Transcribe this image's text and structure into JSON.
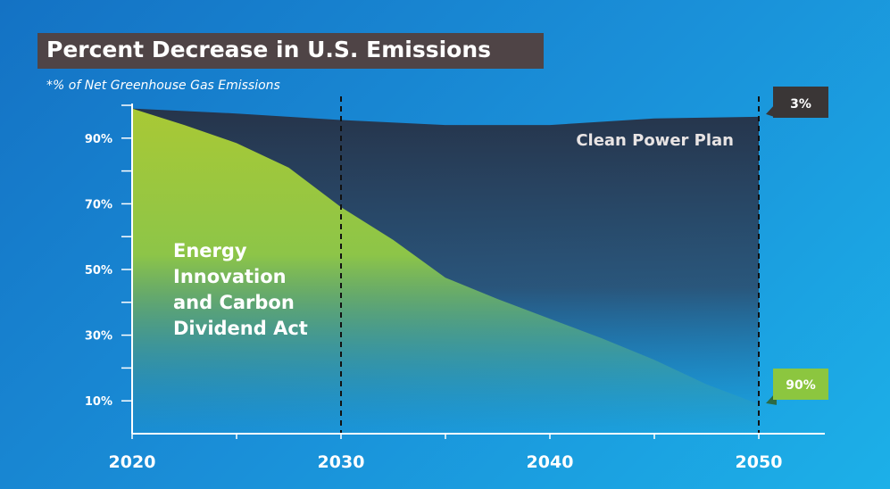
{
  "chart_data": {
    "type": "area",
    "title": "Percent Decrease in U.S. Emissions",
    "subtitle": "*% of Net Greenhouse Gas Emissions",
    "x_ticks": [
      "2020",
      "2030",
      "2040",
      "2050"
    ],
    "y_ticks": [
      "90%",
      "70%",
      "50%",
      "30%",
      "10%"
    ],
    "y_tick_values": [
      90,
      70,
      50,
      30,
      10
    ],
    "xlim": [
      2020,
      2053
    ],
    "ylim": [
      0,
      100
    ],
    "reference_lines": [
      2030,
      2050
    ],
    "series": [
      {
        "name": "Clean Power Plan",
        "color": "#2e4a66",
        "x": [
          2020,
          2025,
          2030,
          2035,
          2040,
          2045,
          2050
        ],
        "y": [
          99,
          97.5,
          95.5,
          94,
          94,
          96,
          96.5
        ],
        "end_label": "3%"
      },
      {
        "name": "Energy Innovation and Carbon Dividend Act",
        "color": "#a6c83a",
        "x": [
          2020,
          2022.5,
          2025,
          2027.5,
          2030,
          2032.5,
          2035,
          2037.5,
          2040,
          2042.5,
          2045,
          2047.5,
          2050
        ],
        "y": [
          99,
          94,
          88.5,
          81,
          69,
          59,
          47.5,
          41,
          35,
          29,
          22.5,
          15,
          9
        ],
        "end_label": "90%"
      }
    ],
    "annotations": {
      "clean_power_plan": "Clean Power Plan",
      "ei_cd_act": [
        "Energy",
        "Innovation",
        "and Carbon",
        "Dividend Act"
      ]
    },
    "colors": {
      "background": "#1a8fd8",
      "title_bg": "#4f4446",
      "cpp_label_bg": "#3a3636",
      "act_label_bg": "#8cc63f",
      "axis": "#ffffff"
    }
  }
}
